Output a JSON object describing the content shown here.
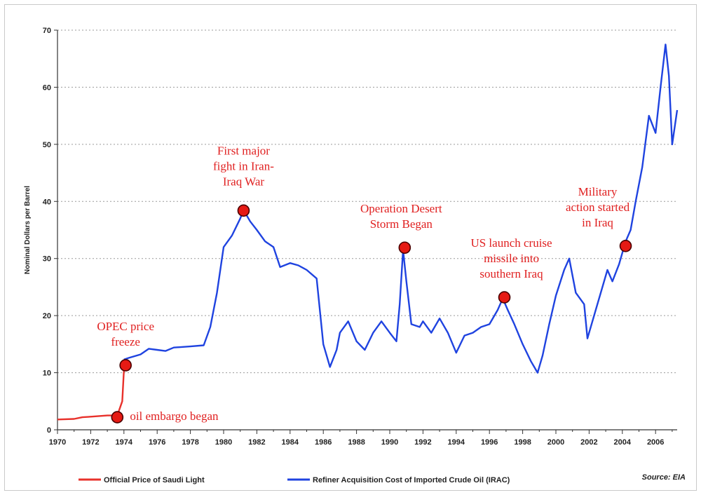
{
  "chart_data": {
    "type": "line",
    "title": "",
    "xlabel": "",
    "ylabel": "Nominal Dollars per Barrel",
    "xlim": [
      1970,
      2007.3
    ],
    "ylim": [
      0,
      70
    ],
    "y_ticks": [
      0,
      10,
      20,
      30,
      40,
      50,
      60,
      70
    ],
    "x_ticks": [
      "1970",
      "1972",
      "1974",
      "1976",
      "1978",
      "1980",
      "1982",
      "1984",
      "1986",
      "1988",
      "1990",
      "1992",
      "1994",
      "1996",
      "1998",
      "2000",
      "2002",
      "2004",
      "2006"
    ],
    "grid": "horizontal dotted",
    "series": [
      {
        "name": "Official Price of Saudi Light",
        "color": "#e8312b",
        "points": [
          [
            1970,
            1.8
          ],
          [
            1971,
            1.9
          ],
          [
            1971.5,
            2.2
          ],
          [
            1972,
            2.3
          ],
          [
            1973,
            2.5
          ],
          [
            1973.6,
            2.5
          ],
          [
            1973.9,
            5.0
          ],
          [
            1974.0,
            10.5
          ],
          [
            1974.05,
            11.6
          ]
        ]
      },
      {
        "name": "Refiner Acquisition Cost of Imported Crude Oil (IRAC)",
        "color": "#1f43e0",
        "points": [
          [
            1974.0,
            12.3
          ],
          [
            1974.3,
            12.6
          ],
          [
            1975,
            13.2
          ],
          [
            1975.5,
            14.2
          ],
          [
            1976,
            14.0
          ],
          [
            1976.5,
            13.8
          ],
          [
            1977,
            14.4
          ],
          [
            1978,
            14.6
          ],
          [
            1978.8,
            14.8
          ],
          [
            1979.2,
            18
          ],
          [
            1979.6,
            24
          ],
          [
            1980,
            32
          ],
          [
            1980.5,
            34
          ],
          [
            1981.0,
            37
          ],
          [
            1981.2,
            38.5
          ],
          [
            1981.6,
            36.5
          ],
          [
            1982,
            35
          ],
          [
            1982.5,
            33
          ],
          [
            1983,
            32
          ],
          [
            1983.4,
            28.5
          ],
          [
            1984,
            29.2
          ],
          [
            1984.5,
            28.8
          ],
          [
            1985,
            28
          ],
          [
            1985.6,
            26.5
          ],
          [
            1986.0,
            15
          ],
          [
            1986.4,
            11
          ],
          [
            1986.8,
            14
          ],
          [
            1987,
            17
          ],
          [
            1987.5,
            19
          ],
          [
            1988,
            15.5
          ],
          [
            1988.5,
            14
          ],
          [
            1989,
            17
          ],
          [
            1989.5,
            19
          ],
          [
            1990,
            17
          ],
          [
            1990.4,
            15.5
          ],
          [
            1990.6,
            22
          ],
          [
            1990.8,
            31.5
          ],
          [
            1991.0,
            26
          ],
          [
            1991.3,
            18.5
          ],
          [
            1991.8,
            18
          ],
          [
            1992,
            19
          ],
          [
            1992.5,
            17
          ],
          [
            1993,
            19.5
          ],
          [
            1993.5,
            17
          ],
          [
            1994,
            13.5
          ],
          [
            1994.5,
            16.5
          ],
          [
            1995,
            17
          ],
          [
            1995.5,
            18
          ],
          [
            1996,
            18.5
          ],
          [
            1996.5,
            21
          ],
          [
            1996.8,
            23
          ],
          [
            1997.1,
            21
          ],
          [
            1997.5,
            18.5
          ],
          [
            1998,
            15
          ],
          [
            1998.5,
            12
          ],
          [
            1998.9,
            10
          ],
          [
            1999.2,
            13
          ],
          [
            1999.6,
            18.5
          ],
          [
            2000,
            23.5
          ],
          [
            2000.5,
            28
          ],
          [
            2000.8,
            30
          ],
          [
            2001.2,
            24
          ],
          [
            2001.7,
            22
          ],
          [
            2001.9,
            16
          ],
          [
            2002.3,
            20
          ],
          [
            2002.7,
            24
          ],
          [
            2003.1,
            28
          ],
          [
            2003.4,
            26
          ],
          [
            2003.8,
            29
          ],
          [
            2004.2,
            33
          ],
          [
            2004.5,
            35
          ],
          [
            2004.8,
            40
          ],
          [
            2005.2,
            46
          ],
          [
            2005.6,
            55
          ],
          [
            2006.0,
            52
          ],
          [
            2006.3,
            60
          ],
          [
            2006.6,
            67.5
          ],
          [
            2006.8,
            62
          ],
          [
            2007.0,
            50
          ],
          [
            2007.3,
            56
          ]
        ]
      }
    ],
    "annotations": [
      {
        "x": 1973.6,
        "y": 2.2,
        "lines": [
          "oil embargo began"
        ]
      },
      {
        "x": 1974.1,
        "y": 11.3,
        "lines": [
          "OPEC price",
          "freeze"
        ]
      },
      {
        "x": 1981.2,
        "y": 38.4,
        "lines": [
          "First major",
          "fight in Iran-",
          "Iraq War"
        ]
      },
      {
        "x": 1990.9,
        "y": 31.9,
        "lines": [
          "Operation Desert",
          "Storm Began"
        ]
      },
      {
        "x": 1996.9,
        "y": 23.2,
        "lines": [
          "US launch cruise",
          "missile into",
          "southern Iraq"
        ]
      },
      {
        "x": 2004.2,
        "y": 32.2,
        "lines": [
          "Military",
          "action started",
          "in Iraq"
        ]
      }
    ],
    "legend": [
      {
        "label": "Official Price of Saudi Light",
        "color": "#e8312b"
      },
      {
        "label": "Refiner Acquisition Cost of Imported Crude Oil (IRAC)",
        "color": "#1f43e0"
      }
    ],
    "source": "Source: EIA"
  }
}
